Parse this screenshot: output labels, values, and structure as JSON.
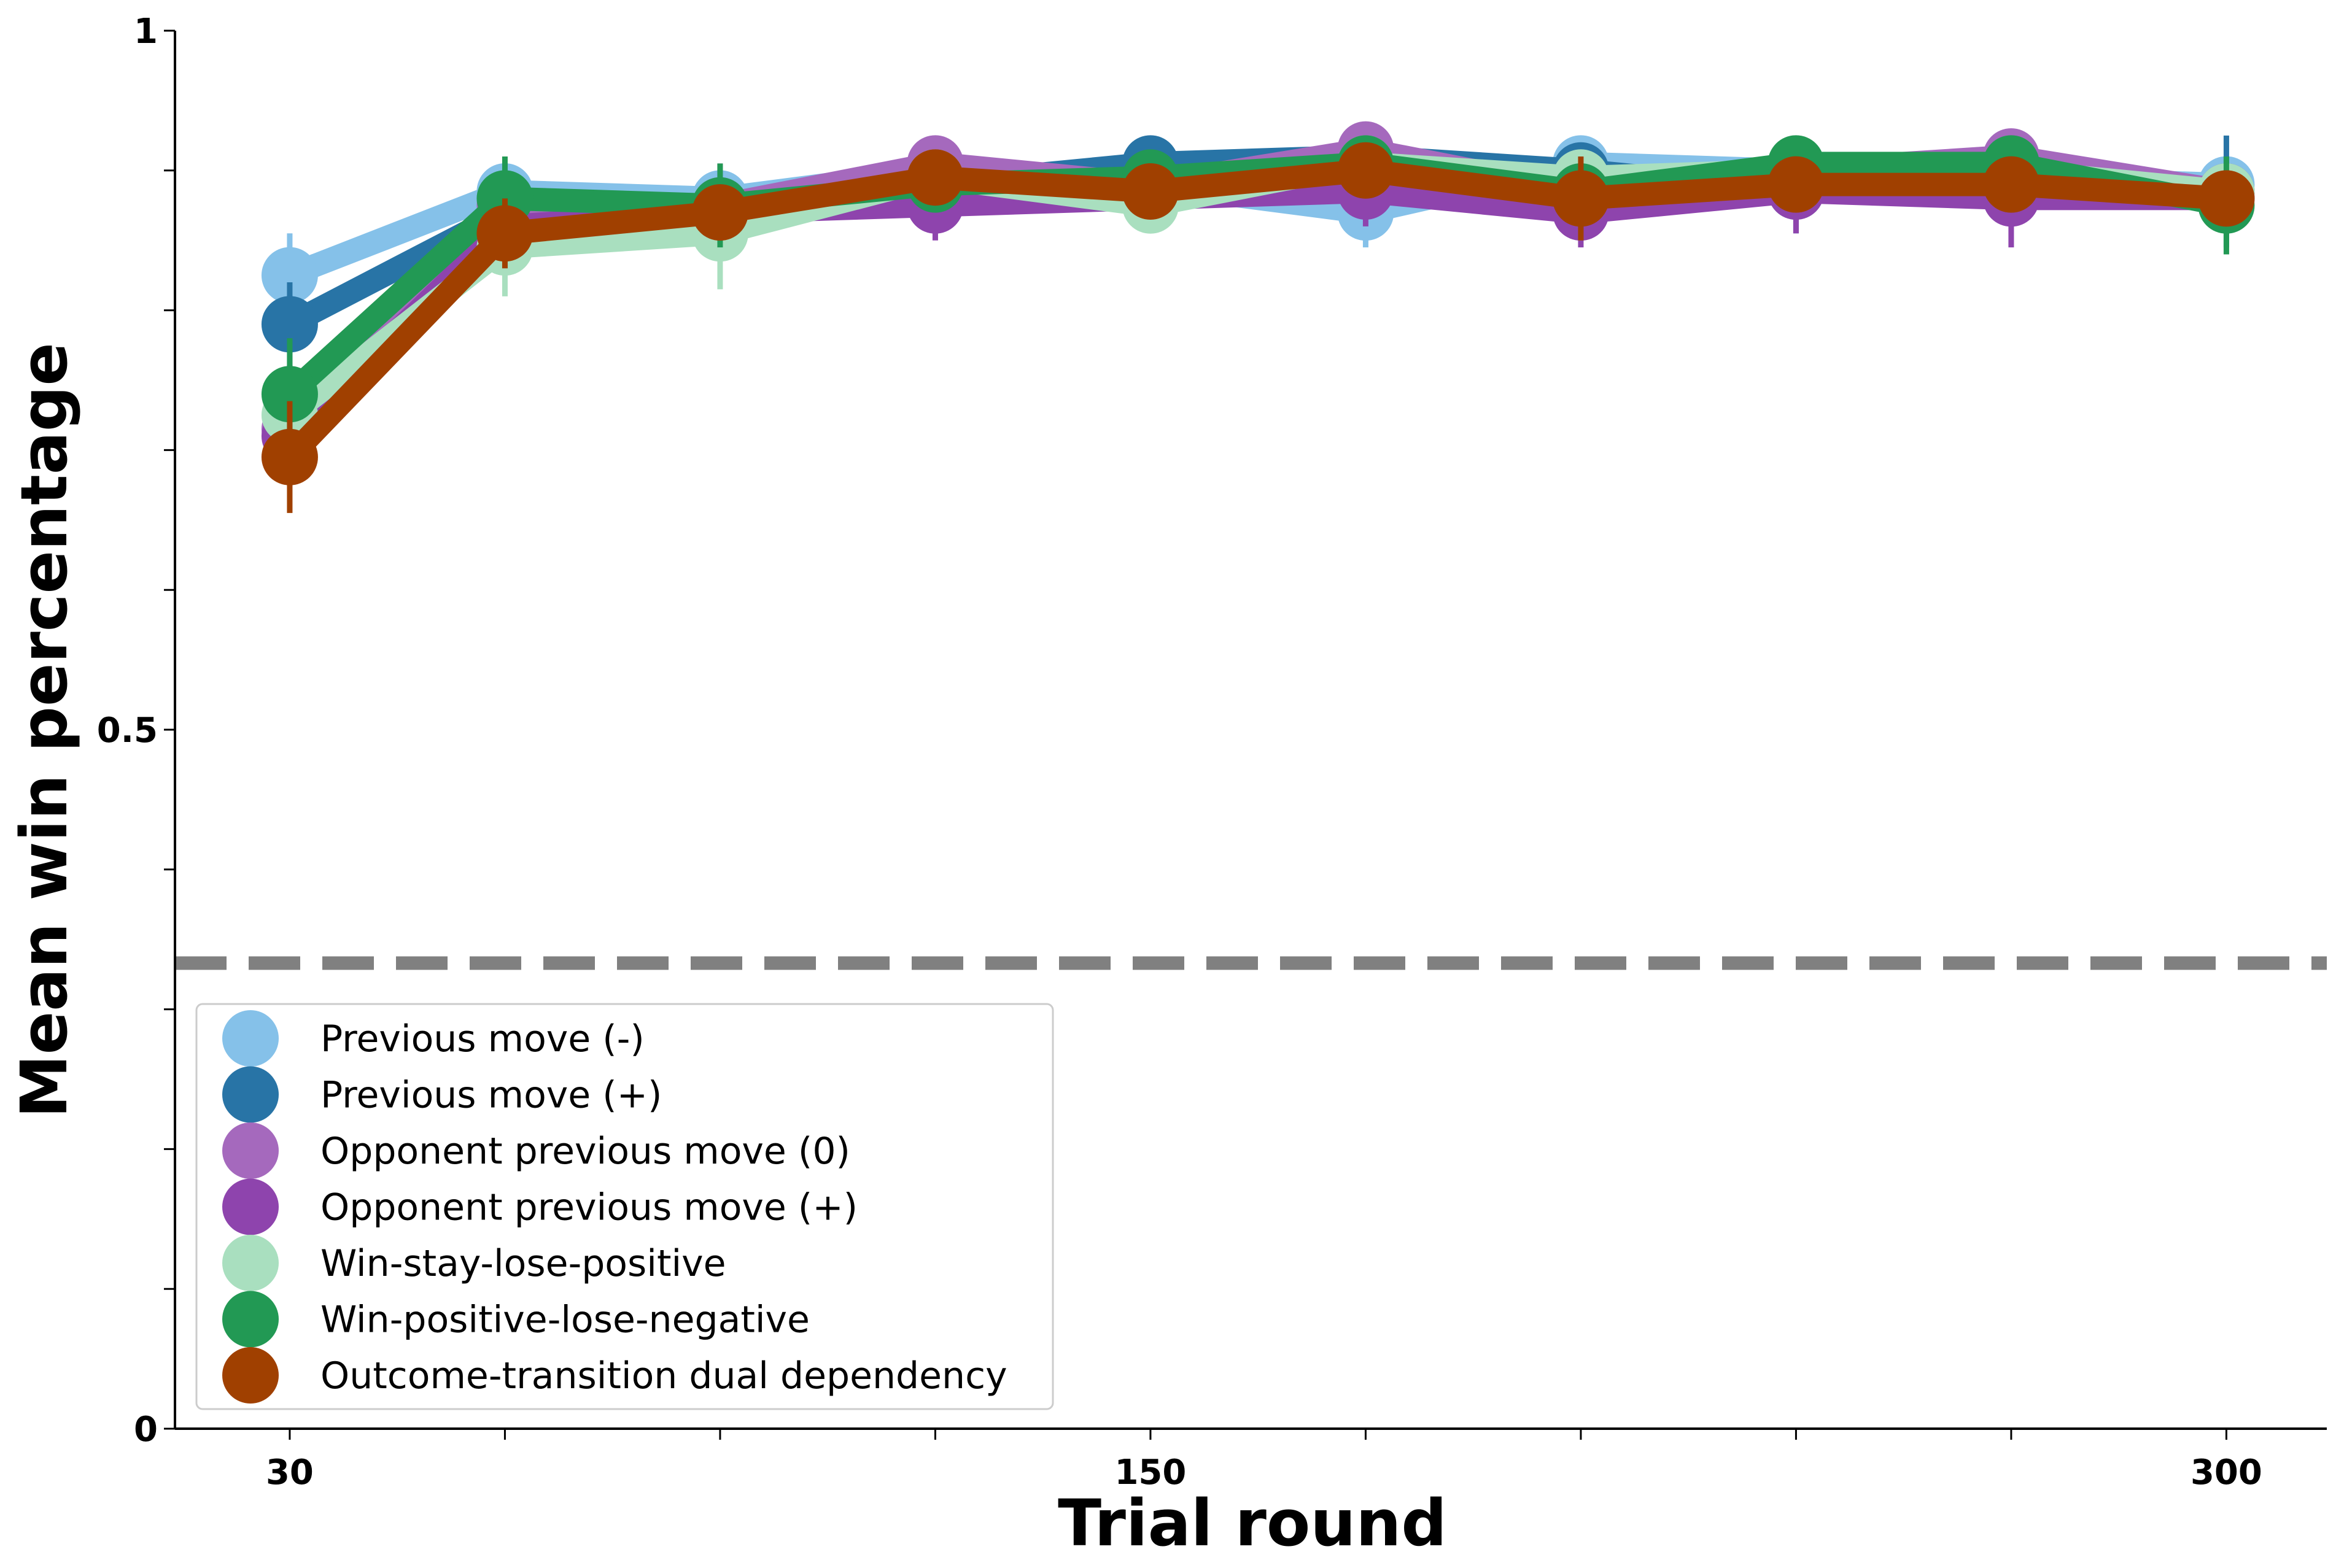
{
  "chart_data": {
    "type": "line",
    "xlabel": "Trial round",
    "ylabel": "Mean win percentage",
    "x": [
      30,
      60,
      90,
      120,
      150,
      180,
      210,
      240,
      270,
      300
    ],
    "xticks": [
      30,
      150,
      300
    ],
    "xtick_labels": [
      "30",
      "150",
      "300"
    ],
    "xlim": [
      14,
      314
    ],
    "yticks": [
      0,
      0.5,
      1
    ],
    "ytick_labels": [
      "0",
      "0.5",
      "1"
    ],
    "ylim": [
      0,
      1
    ],
    "chance_level": 0.333,
    "chance_line_color": "#808080",
    "grid": false,
    "legend_position": "lower-left",
    "series": [
      {
        "name": "Previous move (-)",
        "color": "#85c1e9",
        "values": [
          0.825,
          0.885,
          0.88,
          0.9,
          0.89,
          0.87,
          0.905,
          0.9,
          0.895,
          0.89
        ],
        "errors": [
          0.03,
          0.02,
          0.02,
          0.015,
          0.015,
          0.025,
          0.015,
          0.015,
          0.015,
          0.015
        ]
      },
      {
        "name": "Previous move (+)",
        "color": "#2874a6",
        "values": [
          0.79,
          0.87,
          0.87,
          0.89,
          0.905,
          0.91,
          0.9,
          0.885,
          0.895,
          0.885
        ],
        "errors": [
          0.03,
          0.02,
          0.02,
          0.015,
          0.02,
          0.02,
          0.02,
          0.03,
          0.02,
          0.04
        ]
      },
      {
        "name": "Opponent previous move (0)",
        "color": "#a569bd",
        "values": [
          0.715,
          0.875,
          0.875,
          0.905,
          0.89,
          0.915,
          0.885,
          0.9,
          0.91,
          0.885
        ],
        "errors": [
          0.03,
          0.025,
          0.03,
          0.02,
          0.02,
          0.02,
          0.02,
          0.02,
          0.02,
          0.02
        ]
      },
      {
        "name": "Opponent previous move (+)",
        "color": "#8e44ad",
        "values": [
          0.71,
          0.86,
          0.87,
          0.875,
          0.88,
          0.885,
          0.87,
          0.885,
          0.88,
          0.88
        ],
        "errors": [
          0.03,
          0.02,
          0.025,
          0.025,
          0.02,
          0.025,
          0.025,
          0.03,
          0.035,
          0.02
        ]
      },
      {
        "name": "Win-stay-lose-positive",
        "color": "#a9dfbf",
        "values": [
          0.725,
          0.845,
          0.855,
          0.895,
          0.875,
          0.905,
          0.895,
          0.9,
          0.9,
          0.885
        ],
        "errors": [
          0.03,
          0.035,
          0.04,
          0.02,
          0.02,
          0.02,
          0.02,
          0.02,
          0.02,
          0.02
        ]
      },
      {
        "name": "Win-positive-lose-negative",
        "color": "#229954",
        "values": [
          0.74,
          0.88,
          0.875,
          0.89,
          0.895,
          0.905,
          0.885,
          0.905,
          0.905,
          0.875
        ],
        "errors": [
          0.04,
          0.03,
          0.03,
          0.02,
          0.02,
          0.02,
          0.02,
          0.02,
          0.02,
          0.035
        ]
      },
      {
        "name": "Outcome-transition dual dependency",
        "color": "#a04000",
        "values": [
          0.695,
          0.855,
          0.87,
          0.895,
          0.885,
          0.9,
          0.88,
          0.89,
          0.89,
          0.88
        ],
        "errors": [
          0.04,
          0.025,
          0.02,
          0.02,
          0.02,
          0.02,
          0.03,
          0.02,
          0.02,
          0.02
        ]
      }
    ]
  }
}
